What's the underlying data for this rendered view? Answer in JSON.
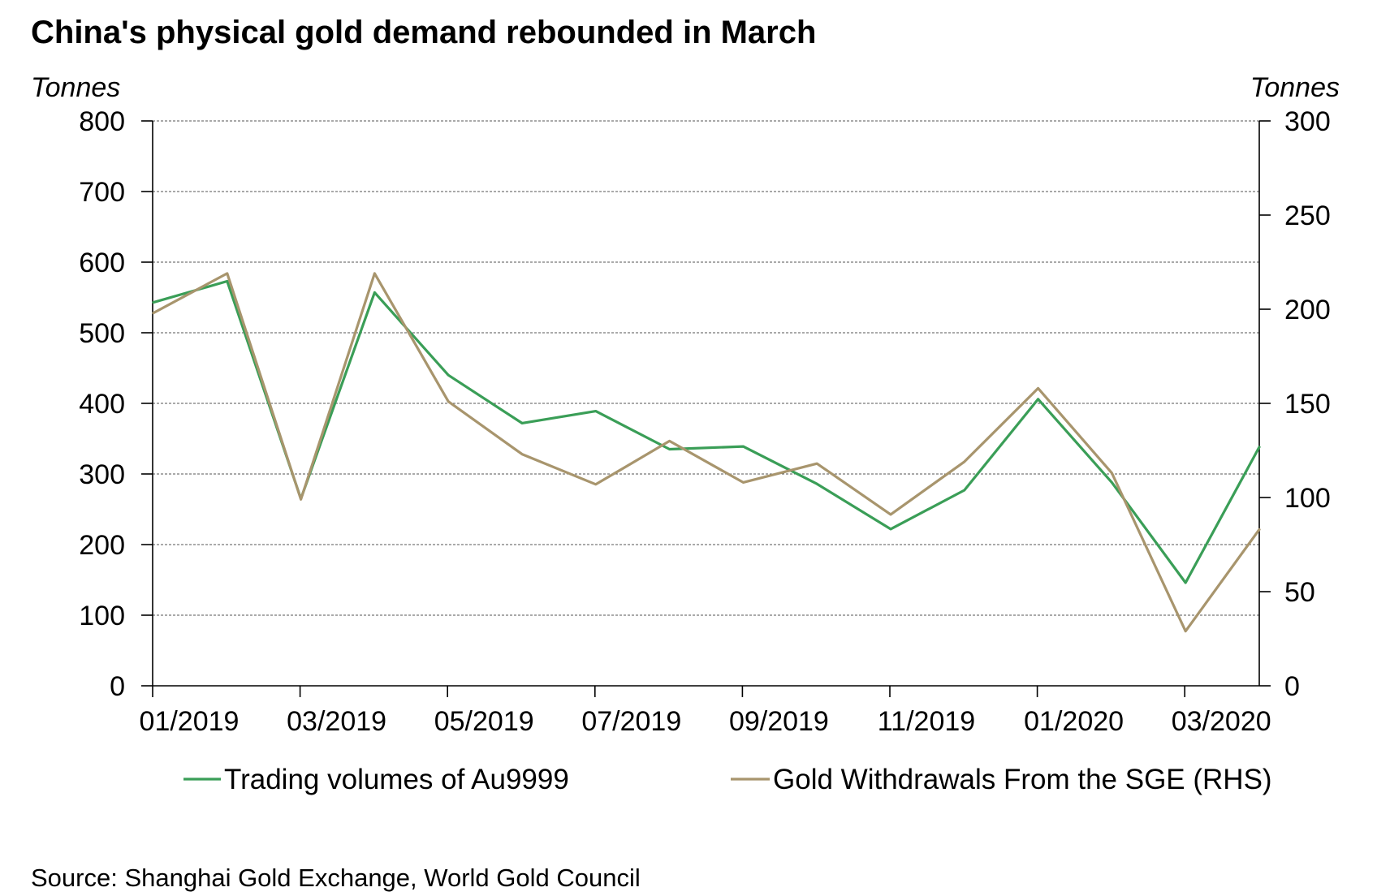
{
  "title": "China's physical gold demand rebounded in March",
  "source": "Source: Shanghai Gold Exchange, World Gold Council",
  "colors": {
    "series_primary": "#3a9e57",
    "series_secondary": "#a8956d",
    "grid": "#555555",
    "axis": "#000000"
  },
  "chart_data": {
    "type": "line",
    "title": "China's physical gold demand rebounded in March",
    "y_label_left": "Tonnes",
    "y_label_right": "Tonnes",
    "ylim_left": [
      0,
      800
    ],
    "ylim_right": [
      0,
      300
    ],
    "yticks_left": [
      0,
      100,
      200,
      300,
      400,
      500,
      600,
      700,
      800
    ],
    "yticks_right": [
      0,
      50,
      100,
      150,
      200,
      250,
      300
    ],
    "x_categories": [
      "12/2018",
      "01/2019",
      "02/2019",
      "03/2019",
      "04/2019",
      "05/2019",
      "06/2019",
      "07/2019",
      "08/2019",
      "09/2019",
      "10/2019",
      "11/2019",
      "12/2019",
      "01/2020",
      "02/2020",
      "03/2020"
    ],
    "x_tick_labels": [
      "01/2019",
      "03/2019",
      "05/2019",
      "07/2019",
      "09/2019",
      "11/2019",
      "01/2020",
      "03/2020"
    ],
    "grid": "horizontal dashed",
    "legend_position": "bottom",
    "series": [
      {
        "name": "Trading volumes of Au9999",
        "axis": "left",
        "color": "#3a9e57",
        "values": [
          543,
          573,
          265,
          557,
          440,
          372,
          389,
          335,
          339,
          286,
          222,
          277,
          406,
          288,
          146,
          338
        ]
      },
      {
        "name": "Gold Withdrawals From the SGE (RHS)",
        "axis": "right",
        "color": "#a8956d",
        "values": [
          198,
          219,
          99,
          219,
          151,
          123,
          107,
          130,
          108,
          118,
          91,
          119,
          158,
          113,
          29,
          83
        ]
      }
    ]
  }
}
